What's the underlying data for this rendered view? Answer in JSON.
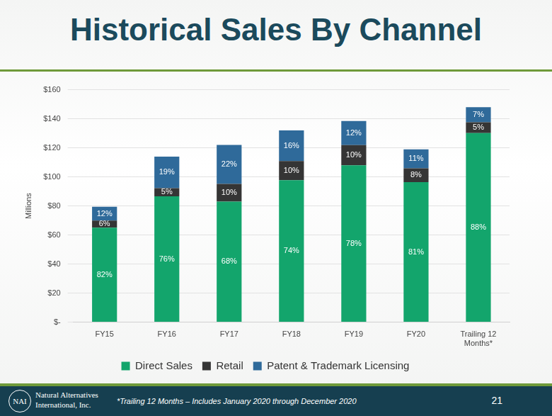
{
  "title": "Historical Sales By Channel",
  "footer": {
    "logo_text": "NAI",
    "company": "Natural Alternatives International, Inc.",
    "note": "*Trailing 12 Months – Includes January 2020 through December 2020",
    "page": "21"
  },
  "chart_data": {
    "type": "bar",
    "stacked": true,
    "grid": true,
    "legend": "bottom",
    "y_label": "Millions",
    "categories": [
      "FY15",
      "FY16",
      "FY17",
      "FY18",
      "FY19",
      "FY20",
      "Trailing 12 Months*"
    ],
    "ylim": [
      0,
      160
    ],
    "yticks": [
      {
        "value": 0,
        "label": "$-"
      },
      {
        "value": 20,
        "label": "$20"
      },
      {
        "value": 40,
        "label": "$40"
      },
      {
        "value": 60,
        "label": "$60"
      },
      {
        "value": 80,
        "label": "$80"
      },
      {
        "value": 100,
        "label": "$100"
      },
      {
        "value": 120,
        "label": "$120"
      },
      {
        "value": 140,
        "label": "$140"
      },
      {
        "value": 160,
        "label": "$160"
      }
    ],
    "series": [
      {
        "name": "Direct Sales",
        "color": "#13a56c",
        "values": [
          65.1,
          86.6,
          83.0,
          97.7,
          108.0,
          96.4,
          130.2
        ],
        "share_labels": [
          "82%",
          "76%",
          "68%",
          "74%",
          "78%",
          "81%",
          "88%"
        ]
      },
      {
        "name": "Retail",
        "color": "#353535",
        "values": [
          4.8,
          5.7,
          12.2,
          13.2,
          13.9,
          9.5,
          7.4
        ],
        "share_labels": [
          "6%",
          "5%",
          "10%",
          "10%",
          "10%",
          "8%",
          "5%"
        ]
      },
      {
        "name": "Patent & Trademark Licensing",
        "color": "#2f6a9a",
        "values": [
          9.5,
          21.7,
          26.8,
          21.1,
          16.6,
          13.1,
          10.4
        ],
        "share_labels": [
          "12%",
          "19%",
          "22%",
          "16%",
          "12%",
          "11%",
          "7%"
        ]
      }
    ]
  }
}
